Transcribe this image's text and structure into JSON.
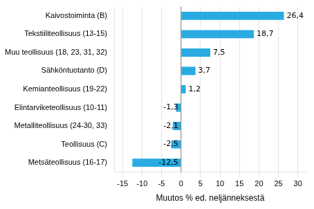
{
  "chart_data": {
    "type": "bar",
    "orientation": "horizontal",
    "categories": [
      "Metsäteollisuus (16-17)",
      "Teollisuus (C)",
      "Metalliteollisuus (24-30, 33)",
      "Elintarviketeollisuus (10-11)",
      "Kemianteollisuus (19-22)",
      "Sähköntuotanto (D)",
      "Muu teollisuus (18, 23, 31, 32)",
      "Tekstiiliteollisuus (13-15)",
      "Kaivostoiminta (B)"
    ],
    "values": [
      -12.5,
      -2.5,
      -2.1,
      -1.3,
      1.2,
      3.7,
      7.5,
      18.7,
      26.4
    ],
    "value_labels": [
      "-12,5",
      "-2,5",
      "-2,1",
      "-1,3",
      "1,2",
      "3,7",
      "7,5",
      "18,7",
      "26,4"
    ],
    "data_labels": true,
    "color": "#29abe2",
    "xlabel": "Muutos % ed. neljänneksestä",
    "xlim": [
      -17,
      32
    ],
    "xticks": [
      -15,
      -10,
      -5,
      0,
      5,
      10,
      15,
      20,
      25,
      30
    ],
    "grid": true
  }
}
